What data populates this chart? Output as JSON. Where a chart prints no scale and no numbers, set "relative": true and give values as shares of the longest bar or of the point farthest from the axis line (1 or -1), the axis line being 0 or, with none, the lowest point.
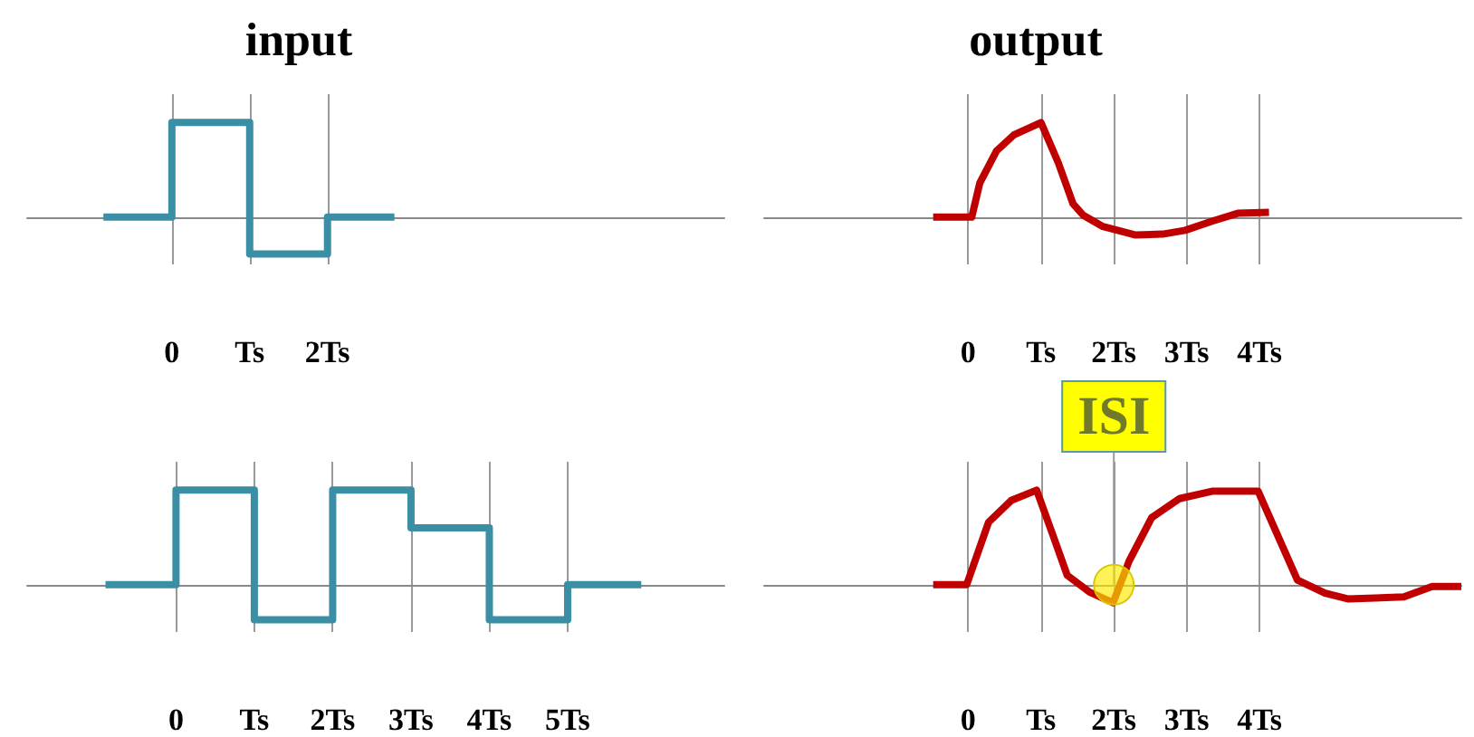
{
  "chart_data": [
    {
      "type": "step",
      "title": "input",
      "relative": true,
      "color": "#3a8fa5",
      "marker": "none",
      "grid": "x",
      "tick_labels": "x",
      "xlim": [
        -1.86,
        7.1
      ],
      "xticks": [
        {
          "value": 0,
          "label": "0"
        },
        {
          "value": 1,
          "label": "Ts"
        },
        {
          "value": 2,
          "label": "2Ts"
        }
      ],
      "x": [
        -0.88,
        0,
        1,
        2,
        2.86
      ],
      "values": [
        0,
        1,
        -0.39,
        0,
        0
      ]
    },
    {
      "type": "line",
      "title": "output",
      "relative": true,
      "color": "#c00000",
      "marker": "none",
      "grid": "x",
      "tick_labels": "x",
      "xlim": [
        -2.8,
        6.77
      ],
      "xticks": [
        {
          "value": 0,
          "label": "0"
        },
        {
          "value": 1,
          "label": "Ts"
        },
        {
          "value": 2,
          "label": "2Ts"
        },
        {
          "value": 3,
          "label": "3Ts"
        },
        {
          "value": 4,
          "label": "4Ts"
        }
      ],
      "x": [
        -0.48,
        0.05,
        0.16,
        0.39,
        0.63,
        1.0,
        1.24,
        1.44,
        1.58,
        1.85,
        2.3,
        2.67,
        2.98,
        3.36,
        3.7,
        4.13
      ],
      "values": [
        0,
        0,
        0.36,
        0.7,
        0.87,
        1,
        0.57,
        0.14,
        0.02,
        -0.1,
        -0.19,
        -0.18,
        -0.14,
        -0.04,
        0.04,
        0.05
      ]
    },
    {
      "type": "step",
      "relative": true,
      "color": "#3a8fa5",
      "marker": "none",
      "grid": "x",
      "tick_labels": "x",
      "xlim": [
        -1.9,
        7.0
      ],
      "xticks": [
        {
          "value": 0,
          "label": "0"
        },
        {
          "value": 1,
          "label": "Ts"
        },
        {
          "value": 2,
          "label": "2Ts"
        },
        {
          "value": 3,
          "label": "3Ts"
        },
        {
          "value": 4,
          "label": "4Ts"
        },
        {
          "value": 5,
          "label": "5Ts"
        }
      ],
      "x": [
        -0.9,
        0,
        1,
        2,
        3,
        4,
        5,
        5.94
      ],
      "values": [
        0,
        1,
        -0.37,
        1,
        0.6,
        -0.37,
        0,
        0
      ]
    },
    {
      "type": "line",
      "relative": true,
      "color": "#c00000",
      "marker": "none",
      "grid": "x",
      "tick_labels": "x",
      "xlim": [
        -2.8,
        6.77
      ],
      "xticks": [
        {
          "value": 0,
          "label": "0"
        },
        {
          "value": 1,
          "label": "Ts"
        },
        {
          "value": 2,
          "label": "2Ts"
        },
        {
          "value": 3,
          "label": "3Ts"
        },
        {
          "value": 4,
          "label": "4Ts"
        }
      ],
      "x": [
        -0.48,
        -0.02,
        0.28,
        0.59,
        0.94,
        1.17,
        1.36,
        1.67,
        1.99,
        2.21,
        2.52,
        2.9,
        3.36,
        3.98,
        4.52,
        4.9,
        5.21,
        5.98,
        6.37,
        6.77
      ],
      "values": [
        0,
        0,
        0.66,
        0.89,
        1,
        0.51,
        0.1,
        -0.08,
        -0.19,
        0.25,
        0.71,
        0.91,
        0.99,
        0.99,
        0.05,
        -0.09,
        -0.15,
        -0.13,
        -0.02,
        -0.02
      ],
      "annotations": [
        {
          "text": "ISI",
          "x": 2,
          "y": 0
        }
      ]
    }
  ]
}
